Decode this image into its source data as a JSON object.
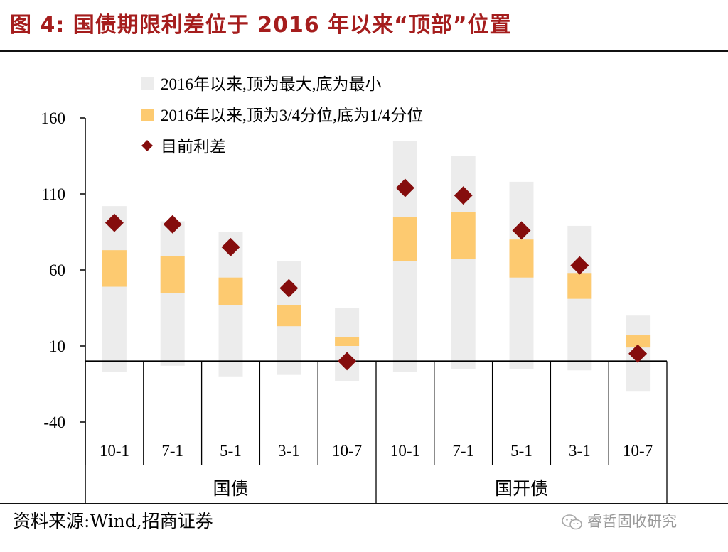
{
  "header": {
    "title": "图 4:  国债期限利差位于 2016 年以来“顶部”位置"
  },
  "footer": {
    "source": "资料来源:Wind,招商证券",
    "watermark": "睿哲固收研究",
    "watermark_icon": "wechat-icon"
  },
  "colors": {
    "title": "#a51d1d",
    "range_min_max": "#ececec",
    "range_quartile": "#fdca70",
    "current_marker": "#850d0d"
  },
  "chart_data": {
    "type": "floating-bar-with-markers",
    "ylim": [
      -40,
      160
    ],
    "yticks": [
      -40,
      10,
      60,
      110,
      160
    ],
    "ytick_labels": [
      "-40",
      "10",
      "60",
      "110",
      "160"
    ],
    "categories": [
      "10-1",
      "7-1",
      "5-1",
      "3-1",
      "10-7",
      "10-1",
      "7-1",
      "5-1",
      "3-1",
      "10-7"
    ],
    "groups": [
      {
        "label": "国债",
        "count": 5
      },
      {
        "label": "国开债",
        "count": 5
      }
    ],
    "legend": [
      {
        "label": "2016年以来,顶为最大,底为最小",
        "symbol": "gray-square"
      },
      {
        "label": "2016年以来,顶为3/4分位,底为1/4分位",
        "symbol": "orange-square"
      },
      {
        "label": "目前利差",
        "symbol": "diamond"
      }
    ],
    "legend_position": "top-left",
    "series": [
      {
        "name": "2016年以来,顶为最大,底为最小",
        "low": [
          -7,
          -3,
          -10,
          -9,
          -13,
          -7,
          -5,
          -5,
          -6,
          -20
        ],
        "high": [
          102,
          92,
          85,
          66,
          35,
          145,
          135,
          118,
          89,
          30
        ]
      },
      {
        "name": "2016年以来,顶为3/4分位,底为1/4分位",
        "low": [
          49,
          45,
          37,
          23,
          10,
          66,
          67,
          55,
          41,
          9
        ],
        "high": [
          73,
          69,
          55,
          37,
          16,
          95,
          98,
          80,
          58,
          17
        ]
      },
      {
        "name": "目前利差",
        "values": [
          91,
          90,
          75,
          48,
          0,
          114,
          109,
          86,
          63,
          5
        ]
      }
    ],
    "zero_line": 0
  }
}
